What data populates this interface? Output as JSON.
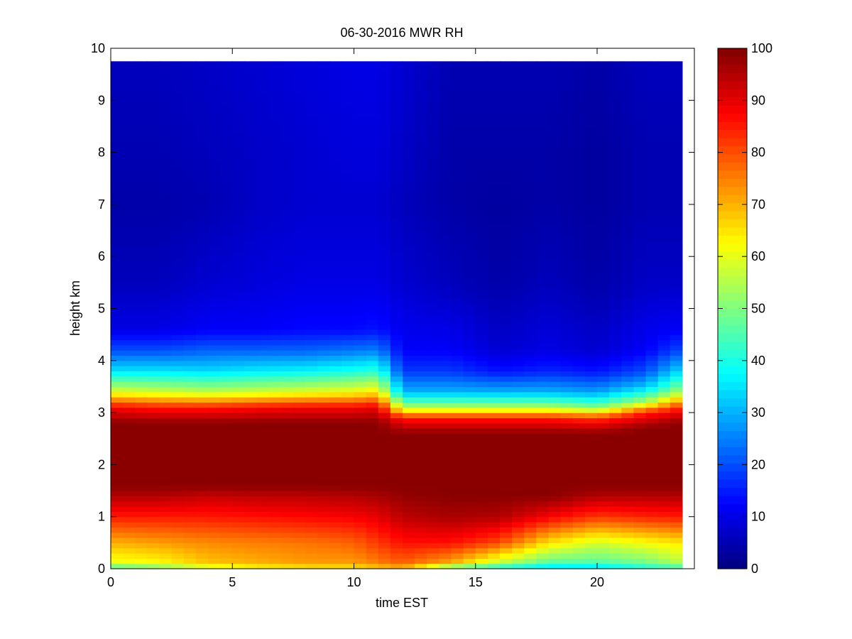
{
  "chart_data": {
    "type": "heatmap",
    "title": "06-30-2016 MWR RH",
    "xlabel": "time EST",
    "ylabel": "height km",
    "xlim": [
      0,
      24
    ],
    "ylim": [
      0,
      10
    ],
    "xticks": [
      0,
      5,
      10,
      15,
      20
    ],
    "yticks": [
      0,
      1,
      2,
      3,
      4,
      5,
      6,
      7,
      8,
      9,
      10
    ],
    "colorbar": {
      "label": "",
      "range": [
        0,
        100
      ],
      "ticks": [
        0,
        10,
        20,
        30,
        40,
        50,
        60,
        70,
        80,
        90,
        100
      ],
      "colormap": "jet"
    },
    "x_range": [
      0,
      23.5
    ],
    "x_step": 0.5,
    "y_range": [
      0,
      9.75
    ],
    "data_extent_note_free": true,
    "profiles": [
      {
        "time": 0,
        "rh": [
          [
            0,
            40
          ],
          [
            0.1,
            60
          ],
          [
            0.5,
            70
          ],
          [
            1.0,
            85
          ],
          [
            1.4,
            95
          ],
          [
            1.6,
            99
          ],
          [
            2.8,
            99
          ],
          [
            3.1,
            88
          ],
          [
            3.4,
            60
          ],
          [
            3.8,
            35
          ],
          [
            4.2,
            20
          ],
          [
            4.6,
            10
          ],
          [
            5.5,
            6
          ],
          [
            7,
            4
          ],
          [
            8,
            5
          ],
          [
            9.75,
            6
          ]
        ]
      },
      {
        "time": 2,
        "rh": [
          [
            0,
            45
          ],
          [
            0.1,
            62
          ],
          [
            0.5,
            72
          ],
          [
            1.0,
            85
          ],
          [
            1.4,
            95
          ],
          [
            1.6,
            99
          ],
          [
            2.8,
            99
          ],
          [
            3.1,
            85
          ],
          [
            3.4,
            58
          ],
          [
            3.8,
            35
          ],
          [
            4.2,
            20
          ],
          [
            4.6,
            10
          ],
          [
            5.5,
            6
          ],
          [
            7,
            4
          ],
          [
            8,
            5
          ],
          [
            9.75,
            6
          ]
        ]
      },
      {
        "time": 4,
        "rh": [
          [
            0,
            55
          ],
          [
            0.1,
            68
          ],
          [
            0.5,
            74
          ],
          [
            1.0,
            85
          ],
          [
            1.4,
            93
          ],
          [
            1.6,
            99
          ],
          [
            2.8,
            99
          ],
          [
            3.1,
            85
          ],
          [
            3.4,
            56
          ],
          [
            3.8,
            34
          ],
          [
            4.2,
            22
          ],
          [
            4.6,
            12
          ],
          [
            5.5,
            8
          ],
          [
            7,
            5
          ],
          [
            8,
            6
          ],
          [
            9.75,
            7
          ]
        ]
      },
      {
        "time": 6,
        "rh": [
          [
            0,
            60
          ],
          [
            0.1,
            70
          ],
          [
            0.5,
            75
          ],
          [
            1.0,
            86
          ],
          [
            1.4,
            94
          ],
          [
            1.6,
            99
          ],
          [
            2.8,
            99
          ],
          [
            3.1,
            87
          ],
          [
            3.4,
            58
          ],
          [
            3.8,
            36
          ],
          [
            4.2,
            22
          ],
          [
            4.6,
            12
          ],
          [
            5.5,
            9
          ],
          [
            7,
            7
          ],
          [
            8,
            7
          ],
          [
            9.75,
            8
          ]
        ]
      },
      {
        "time": 8,
        "rh": [
          [
            0,
            62
          ],
          [
            0.1,
            72
          ],
          [
            0.5,
            76
          ],
          [
            1.0,
            87
          ],
          [
            1.4,
            94
          ],
          [
            1.6,
            99
          ],
          [
            2.8,
            99
          ],
          [
            3.1,
            88
          ],
          [
            3.4,
            60
          ],
          [
            3.8,
            37
          ],
          [
            4.2,
            22
          ],
          [
            4.6,
            13
          ],
          [
            5.5,
            10
          ],
          [
            7,
            8
          ],
          [
            8,
            8
          ],
          [
            9.75,
            9
          ]
        ]
      },
      {
        "time": 10,
        "rh": [
          [
            0,
            62
          ],
          [
            0.1,
            72
          ],
          [
            0.5,
            78
          ],
          [
            1.0,
            88
          ],
          [
            1.4,
            95
          ],
          [
            1.6,
            99
          ],
          [
            2.8,
            99
          ],
          [
            3.1,
            88
          ],
          [
            3.4,
            62
          ],
          [
            3.8,
            40
          ],
          [
            4.2,
            24
          ],
          [
            4.6,
            13
          ],
          [
            5.5,
            10
          ],
          [
            7,
            8
          ],
          [
            8,
            9
          ],
          [
            9.75,
            10
          ]
        ]
      },
      {
        "time": 11,
        "rh": [
          [
            0,
            65
          ],
          [
            0.1,
            75
          ],
          [
            0.5,
            82
          ],
          [
            1.0,
            90
          ],
          [
            1.4,
            96
          ],
          [
            1.6,
            99
          ],
          [
            2.8,
            99
          ],
          [
            3.1,
            90
          ],
          [
            3.4,
            65
          ],
          [
            3.8,
            42
          ],
          [
            4.2,
            25
          ],
          [
            4.6,
            14
          ],
          [
            5.5,
            10
          ],
          [
            7,
            8
          ],
          [
            8,
            9
          ],
          [
            9.75,
            10
          ]
        ]
      },
      {
        "time": 12,
        "rh": [
          [
            0,
            68
          ],
          [
            0.1,
            78
          ],
          [
            0.5,
            86
          ],
          [
            1.0,
            94
          ],
          [
            1.4,
            98
          ],
          [
            1.6,
            99
          ],
          [
            2.6,
            99
          ],
          [
            2.9,
            85
          ],
          [
            3.1,
            55
          ],
          [
            3.4,
            30
          ],
          [
            3.8,
            18
          ],
          [
            4.2,
            12
          ],
          [
            5.5,
            8
          ],
          [
            7,
            6
          ],
          [
            8,
            7
          ],
          [
            9.75,
            8
          ]
        ]
      },
      {
        "time": 14,
        "rh": [
          [
            0,
            40
          ],
          [
            0.1,
            70
          ],
          [
            0.5,
            86
          ],
          [
            1.0,
            96
          ],
          [
            1.4,
            99
          ],
          [
            2.6,
            99
          ],
          [
            2.9,
            85
          ],
          [
            3.1,
            55
          ],
          [
            3.4,
            30
          ],
          [
            3.8,
            18
          ],
          [
            4.2,
            12
          ],
          [
            5.5,
            6
          ],
          [
            7,
            4
          ],
          [
            8,
            4
          ],
          [
            9.75,
            5
          ]
        ]
      },
      {
        "time": 16,
        "rh": [
          [
            0,
            35
          ],
          [
            0.1,
            55
          ],
          [
            0.5,
            80
          ],
          [
            1.0,
            95
          ],
          [
            1.4,
            99
          ],
          [
            2.6,
            99
          ],
          [
            2.9,
            85
          ],
          [
            3.1,
            55
          ],
          [
            3.4,
            30
          ],
          [
            3.8,
            14
          ],
          [
            4.2,
            8
          ],
          [
            5.5,
            4
          ],
          [
            7,
            3
          ],
          [
            8,
            4
          ],
          [
            9.75,
            5
          ]
        ]
      },
      {
        "time": 18,
        "rh": [
          [
            0,
            30
          ],
          [
            0.1,
            45
          ],
          [
            0.5,
            65
          ],
          [
            1.0,
            88
          ],
          [
            1.4,
            99
          ],
          [
            2.6,
            99
          ],
          [
            2.9,
            85
          ],
          [
            3.1,
            55
          ],
          [
            3.4,
            30
          ],
          [
            3.8,
            16
          ],
          [
            4.2,
            10
          ],
          [
            5.5,
            6
          ],
          [
            7,
            4
          ],
          [
            8,
            4
          ],
          [
            9.75,
            5
          ]
        ]
      },
      {
        "time": 20,
        "rh": [
          [
            0,
            30
          ],
          [
            0.1,
            45
          ],
          [
            0.5,
            58
          ],
          [
            1.0,
            82
          ],
          [
            1.4,
            95
          ],
          [
            1.6,
            99
          ],
          [
            2.6,
            99
          ],
          [
            2.9,
            82
          ],
          [
            3.1,
            50
          ],
          [
            3.4,
            28
          ],
          [
            3.8,
            14
          ],
          [
            4.2,
            8
          ],
          [
            5.5,
            4
          ],
          [
            7,
            3
          ],
          [
            8,
            3
          ],
          [
            9.75,
            4
          ]
        ]
      },
      {
        "time": 22,
        "rh": [
          [
            0,
            38
          ],
          [
            0.1,
            48
          ],
          [
            0.5,
            62
          ],
          [
            1.0,
            84
          ],
          [
            1.4,
            95
          ],
          [
            1.6,
            99
          ],
          [
            2.7,
            99
          ],
          [
            3.0,
            85
          ],
          [
            3.2,
            55
          ],
          [
            3.5,
            32
          ],
          [
            3.8,
            20
          ],
          [
            4.2,
            12
          ],
          [
            5.5,
            7
          ],
          [
            7,
            5
          ],
          [
            8,
            5
          ],
          [
            9.75,
            6
          ]
        ]
      },
      {
        "time": 23.5,
        "rh": [
          [
            0,
            40
          ],
          [
            0.1,
            55
          ],
          [
            0.5,
            65
          ],
          [
            1.0,
            85
          ],
          [
            1.4,
            95
          ],
          [
            1.6,
            99
          ],
          [
            2.8,
            99
          ],
          [
            3.1,
            85
          ],
          [
            3.4,
            55
          ],
          [
            3.8,
            35
          ],
          [
            4.2,
            20
          ],
          [
            4.6,
            12
          ],
          [
            5.5,
            7
          ],
          [
            7,
            5
          ],
          [
            8,
            5
          ],
          [
            9.75,
            6
          ]
        ]
      }
    ]
  }
}
